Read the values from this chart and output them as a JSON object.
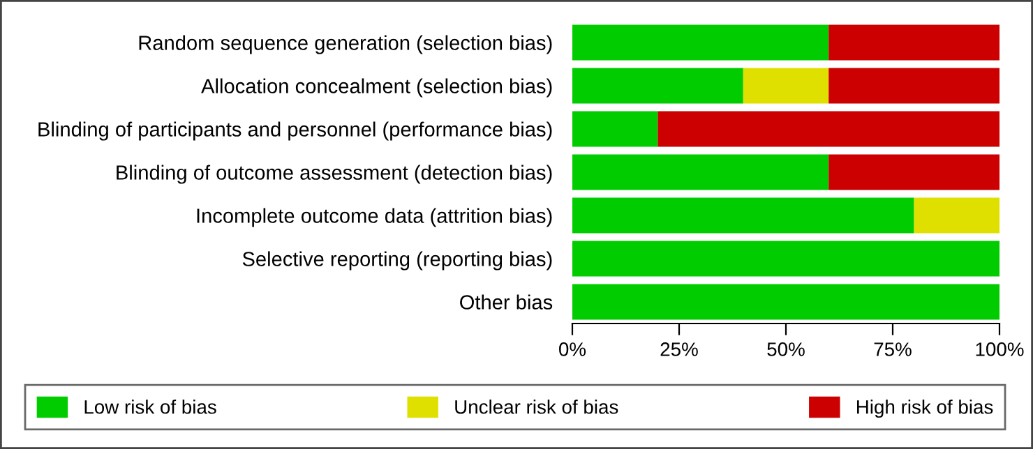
{
  "chart_data": {
    "type": "bar",
    "orientation": "horizontal",
    "stacked": true,
    "categories": [
      "Random sequence generation (selection bias)",
      "Allocation concealment (selection bias)",
      "Blinding of participants and personnel (performance bias)",
      "Blinding of outcome assessment (detection bias)",
      "Incomplete outcome data (attrition bias)",
      "Selective reporting (reporting bias)",
      "Other bias"
    ],
    "series": [
      {
        "name": "Low risk of bias",
        "color": "#00cc00",
        "values": [
          60,
          40,
          20,
          60,
          80,
          100,
          100
        ]
      },
      {
        "name": "Unclear risk of bias",
        "color": "#e0e000",
        "values": [
          0,
          20,
          0,
          0,
          20,
          0,
          0
        ]
      },
      {
        "name": "High risk of bias",
        "color": "#cc0000",
        "values": [
          40,
          40,
          80,
          40,
          0,
          0,
          0
        ]
      }
    ],
    "xlim": [
      0,
      100
    ],
    "xticks": [
      {
        "value": 0,
        "label": "0%"
      },
      {
        "value": 25,
        "label": "25%"
      },
      {
        "value": 50,
        "label": "50%"
      },
      {
        "value": 75,
        "label": "75%"
      },
      {
        "value": 100,
        "label": "100%"
      }
    ],
    "grid": false,
    "legend": "bottom"
  }
}
